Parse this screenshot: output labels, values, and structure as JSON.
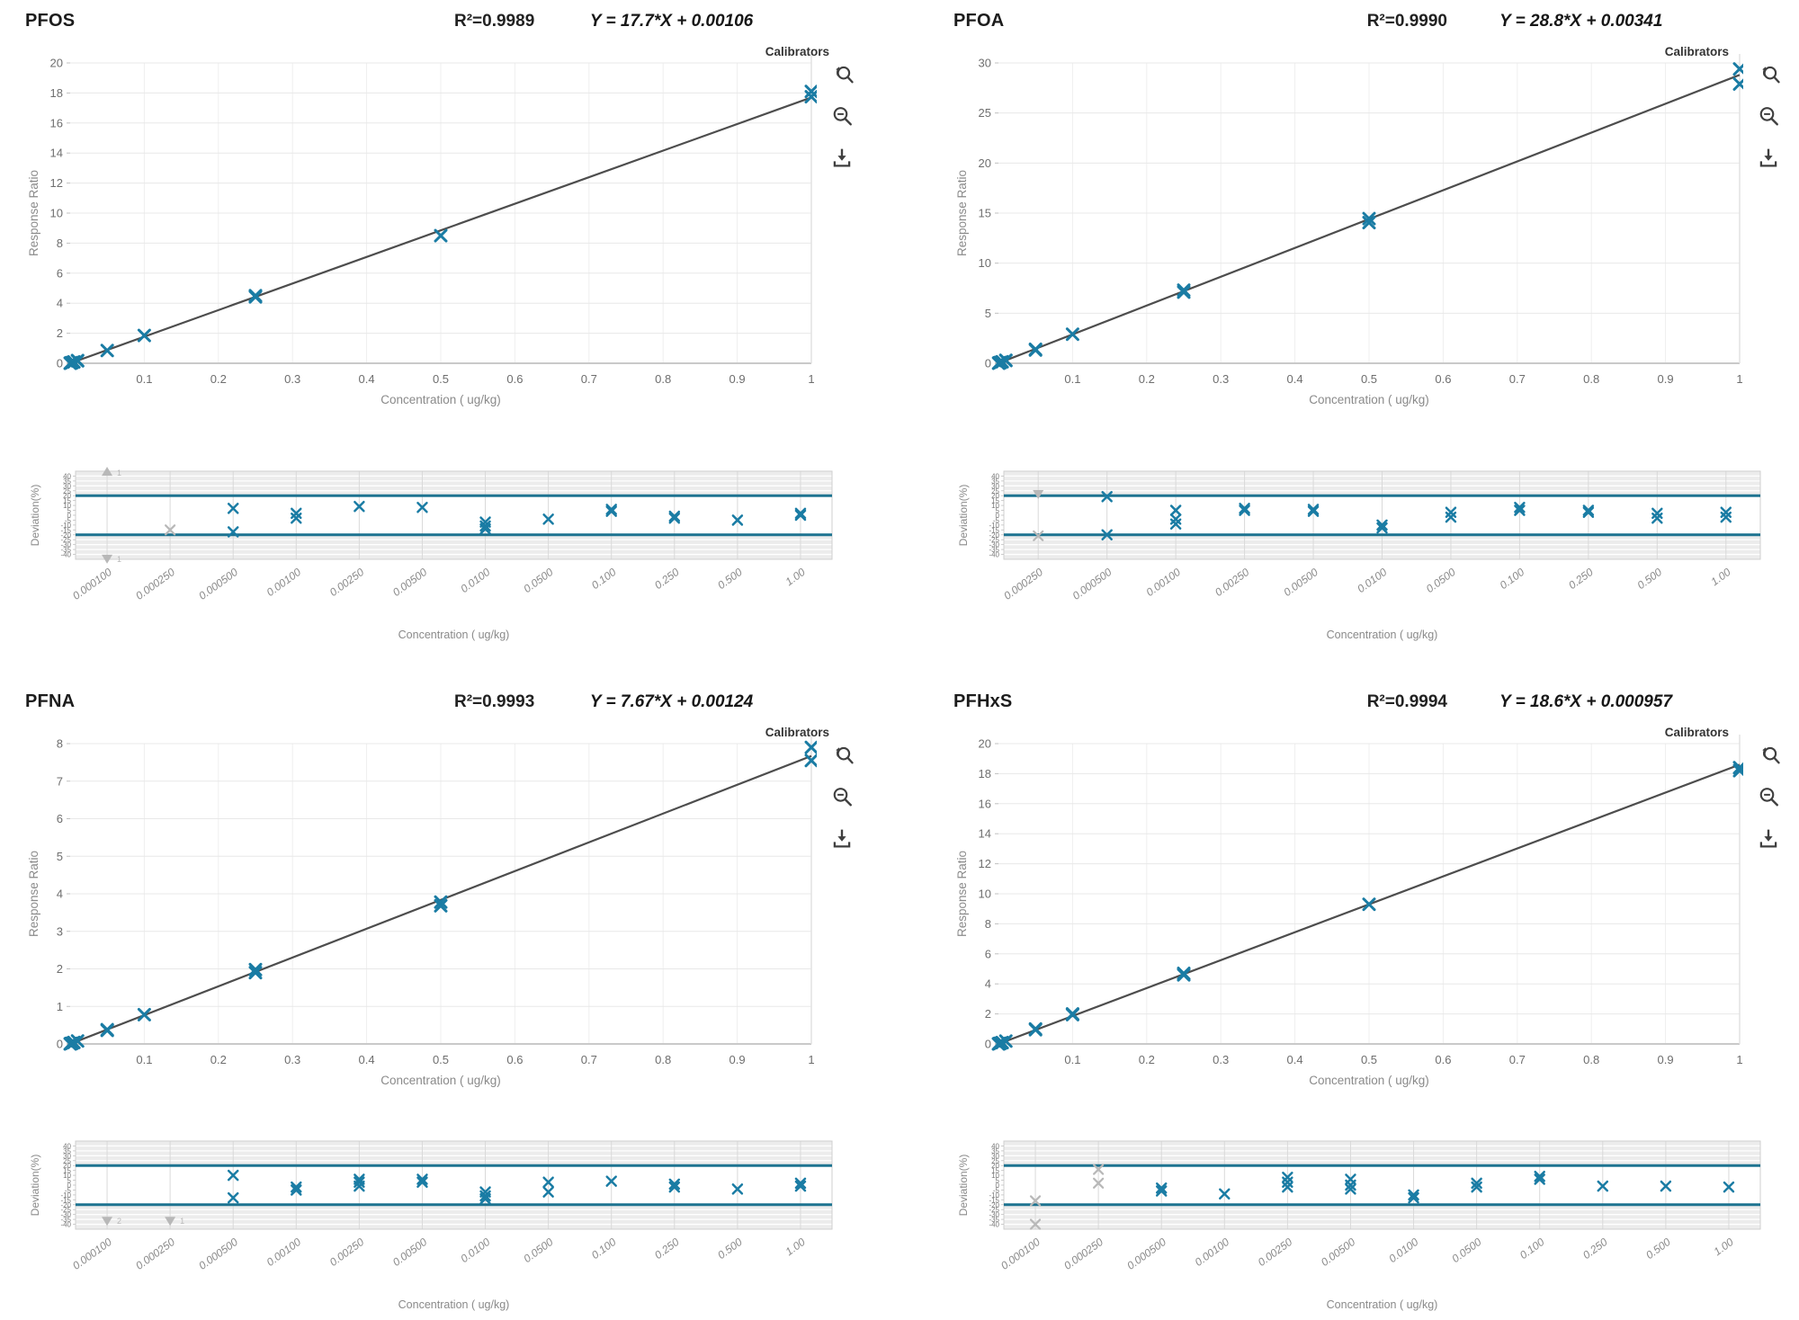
{
  "colors": {
    "marker": "#1a7ca4",
    "limit_line": "#1d7390",
    "fit_line": "#4d4d4d",
    "excluded": "#b8b8b8",
    "grid": "#e8e8e8",
    "grid_vertical": "#efefef",
    "zero_line": "#c9c9c9",
    "stripe": "#ececec",
    "axis_text": "#8a8a8a",
    "tick_text": "#6e6e6e",
    "frame": "#cfcfcf",
    "icon": "#3f3f3f"
  },
  "icon_labels": {
    "zoom_reset": "zoom-reset",
    "zoom_out": "zoom-out",
    "download": "download"
  },
  "chart_data": [
    {
      "id": "PFOS",
      "title": "PFOS",
      "r2": "R²=0.9989",
      "equation": "Y = 17.7*X + 0.00106",
      "legend": "Calibrators",
      "main": {
        "type": "scatter",
        "xlabel": "Concentration ( ug/kg)",
        "ylabel": "Response Ratio",
        "xlim": [
          0,
          1
        ],
        "ylim": [
          0,
          20
        ],
        "xticks": [
          "0.1",
          "0.2",
          "0.3",
          "0.4",
          "0.5",
          "0.6",
          "0.7",
          "0.8",
          "0.9",
          "1"
        ],
        "yticks": [
          0,
          2,
          4,
          6,
          8,
          10,
          12,
          14,
          16,
          18,
          20
        ],
        "fit": {
          "slope": 17.7,
          "intercept": 0.00106
        },
        "points": [
          [
            0.0001,
            0.002
          ],
          [
            0.00025,
            0.005
          ],
          [
            0.0005,
            0.01
          ],
          [
            0.001,
            0.02
          ],
          [
            0.0025,
            0.05
          ],
          [
            0.005,
            0.09
          ],
          [
            0.01,
            0.18
          ],
          [
            0.01,
            0.16
          ],
          [
            0.05,
            0.85
          ],
          [
            0.1,
            1.85
          ],
          [
            0.25,
            4.5
          ],
          [
            0.25,
            4.42
          ],
          [
            0.5,
            8.5
          ],
          [
            1,
            18.1
          ],
          [
            1,
            17.75
          ]
        ]
      },
      "deviation": {
        "type": "scatter",
        "xlabel": "Concentration ( ug/kg)",
        "ylabel": "Deviation(%)",
        "ylim": [
          -45,
          45
        ],
        "yticks": [
          40,
          35,
          30,
          25,
          20,
          15,
          10,
          5,
          0,
          -5,
          -10,
          -15,
          -20,
          -25,
          -30,
          -35,
          -40
        ],
        "limits": [
          20,
          -20
        ],
        "categories": [
          "0.000100",
          "0.000250",
          "0.000500",
          "0.00100",
          "0.00250",
          "0.00500",
          "0.0100",
          "0.0500",
          "0.100",
          "0.250",
          "0.500",
          "1.00"
        ],
        "points": [
          {
            "x": "0.000500",
            "y": [
              7,
              -17
            ]
          },
          {
            "x": "0.00100",
            "y": [
              2,
              -3
            ]
          },
          {
            "x": "0.00250",
            "y": [
              9
            ]
          },
          {
            "x": "0.00500",
            "y": [
              8
            ]
          },
          {
            "x": "0.0100",
            "y": [
              -7,
              -11,
              -14
            ]
          },
          {
            "x": "0.0500",
            "y": [
              -4
            ]
          },
          {
            "x": "0.100",
            "y": [
              6,
              4
            ]
          },
          {
            "x": "0.250",
            "y": [
              -1,
              -3
            ]
          },
          {
            "x": "0.500",
            "y": [
              -5
            ]
          },
          {
            "x": "1.00",
            "y": [
              2,
              0
            ]
          }
        ],
        "excluded": [
          {
            "x": "0.000100",
            "y": 44,
            "marker": "triangle-up",
            "count": "1"
          },
          {
            "x": "0.000100",
            "y": -44,
            "marker": "triangle-down",
            "count": "1"
          },
          {
            "x": "0.000250",
            "y": -15,
            "marker": "x",
            "count": ""
          }
        ]
      }
    },
    {
      "id": "PFOA",
      "title": "PFOA",
      "r2": "R²=0.9990",
      "equation": "Y = 28.8*X + 0.00341",
      "legend": "Calibrators",
      "main": {
        "type": "scatter",
        "xlabel": "Concentration ( ug/kg)",
        "ylabel": "Response Ratio",
        "xlim": [
          0,
          1
        ],
        "ylim": [
          0,
          30
        ],
        "xticks": [
          "0.1",
          "0.2",
          "0.3",
          "0.4",
          "0.5",
          "0.6",
          "0.7",
          "0.8",
          "0.9",
          "1"
        ],
        "yticks": [
          0,
          5,
          10,
          15,
          20,
          25,
          30
        ],
        "fit": {
          "slope": 28.8,
          "intercept": 0.00341
        },
        "points": [
          [
            0.00025,
            0.01
          ],
          [
            0.0005,
            0.018
          ],
          [
            0.001,
            0.035
          ],
          [
            0.0025,
            0.08
          ],
          [
            0.005,
            0.15
          ],
          [
            0.01,
            0.3
          ],
          [
            0.01,
            0.27
          ],
          [
            0.05,
            1.4
          ],
          [
            0.05,
            1.32
          ],
          [
            0.1,
            2.9
          ],
          [
            0.25,
            7.3
          ],
          [
            0.25,
            7.1
          ],
          [
            0.5,
            14.45
          ],
          [
            0.5,
            14.05
          ],
          [
            1,
            29.4
          ],
          [
            1,
            27.9
          ]
        ]
      },
      "deviation": {
        "type": "scatter",
        "xlabel": "Concentration ( ug/kg)",
        "ylabel": "Deviation(%)",
        "ylim": [
          -45,
          45
        ],
        "yticks": [
          40,
          35,
          30,
          25,
          20,
          15,
          10,
          5,
          0,
          -5,
          -10,
          -15,
          -20,
          -25,
          -30,
          -35,
          -40
        ],
        "limits": [
          20,
          -20
        ],
        "categories": [
          "0.000250",
          "0.000500",
          "0.00100",
          "0.00250",
          "0.00500",
          "0.0100",
          "0.0500",
          "0.100",
          "0.250",
          "0.500",
          "1.00"
        ],
        "points": [
          {
            "x": "0.000500",
            "y": [
              19,
              -20
            ]
          },
          {
            "x": "0.00100",
            "y": [
              5,
              -4,
              -9
            ]
          },
          {
            "x": "0.00250",
            "y": [
              7,
              5
            ]
          },
          {
            "x": "0.00500",
            "y": [
              6,
              4
            ]
          },
          {
            "x": "0.0100",
            "y": [
              -10,
              -13
            ]
          },
          {
            "x": "0.0500",
            "y": [
              3,
              -2
            ]
          },
          {
            "x": "0.100",
            "y": [
              8,
              5
            ]
          },
          {
            "x": "0.250",
            "y": [
              5,
              3
            ]
          },
          {
            "x": "0.500",
            "y": [
              2,
              -3
            ]
          },
          {
            "x": "1.00",
            "y": [
              3,
              -2
            ]
          }
        ],
        "excluded": [
          {
            "x": "0.000250",
            "y": 22,
            "marker": "triangle-down",
            "count": ""
          },
          {
            "x": "0.000250",
            "y": -21,
            "marker": "x",
            "count": ""
          }
        ]
      }
    },
    {
      "id": "PFNA",
      "title": "PFNA",
      "r2": "R²=0.9993",
      "equation": "Y = 7.67*X + 0.00124",
      "legend": "Calibrators",
      "main": {
        "type": "scatter",
        "xlabel": "Concentration ( ug/kg)",
        "ylabel": "Response Ratio",
        "xlim": [
          0,
          1
        ],
        "ylim": [
          0,
          8
        ],
        "xticks": [
          "0.1",
          "0.2",
          "0.3",
          "0.4",
          "0.5",
          "0.6",
          "0.7",
          "0.8",
          "0.9",
          "1"
        ],
        "yticks": [
          0,
          1,
          2,
          3,
          4,
          5,
          6,
          7,
          8
        ],
        "fit": {
          "slope": 7.67,
          "intercept": 0.00124
        },
        "points": [
          [
            0.0001,
            0.001
          ],
          [
            0.00025,
            0.003
          ],
          [
            0.0005,
            0.005
          ],
          [
            0.001,
            0.009
          ],
          [
            0.0025,
            0.02
          ],
          [
            0.005,
            0.04
          ],
          [
            0.01,
            0.08
          ],
          [
            0.05,
            0.38
          ],
          [
            0.05,
            0.36
          ],
          [
            0.1,
            0.78
          ],
          [
            0.25,
            1.98
          ],
          [
            0.25,
            1.9
          ],
          [
            0.5,
            3.78
          ],
          [
            0.5,
            3.68
          ],
          [
            1,
            7.9
          ],
          [
            1,
            7.55
          ]
        ]
      },
      "deviation": {
        "type": "scatter",
        "xlabel": "Concentration ( ug/kg)",
        "ylabel": "Deviation(%)",
        "ylim": [
          -45,
          45
        ],
        "yticks": [
          40,
          35,
          30,
          25,
          20,
          15,
          10,
          5,
          0,
          -5,
          -10,
          -15,
          -20,
          -25,
          -30,
          -35,
          -40
        ],
        "limits": [
          20,
          -20
        ],
        "categories": [
          "0.000100",
          "0.000250",
          "0.000500",
          "0.00100",
          "0.00250",
          "0.00500",
          "0.0100",
          "0.0500",
          "0.100",
          "0.250",
          "0.500",
          "1.00"
        ],
        "points": [
          {
            "x": "0.000500",
            "y": [
              10,
              -13
            ]
          },
          {
            "x": "0.00100",
            "y": [
              -2,
              -5
            ]
          },
          {
            "x": "0.00250",
            "y": [
              6,
              3,
              -1
            ]
          },
          {
            "x": "0.00500",
            "y": [
              6,
              3
            ]
          },
          {
            "x": "0.0100",
            "y": [
              -7,
              -11,
              -14
            ]
          },
          {
            "x": "0.0500",
            "y": [
              3,
              -7
            ]
          },
          {
            "x": "0.100",
            "y": [
              4
            ]
          },
          {
            "x": "0.250",
            "y": [
              1,
              -2
            ]
          },
          {
            "x": "0.500",
            "y": [
              -4
            ]
          },
          {
            "x": "1.00",
            "y": [
              2,
              -1
            ]
          }
        ],
        "excluded": [
          {
            "x": "0.000100",
            "y": -36,
            "marker": "triangle-down",
            "count": "2"
          },
          {
            "x": "0.000250",
            "y": -36,
            "marker": "triangle-down",
            "count": "1"
          }
        ]
      }
    },
    {
      "id": "PFHxS",
      "title": "PFHxS",
      "r2": "R²=0.9994",
      "equation": "Y = 18.6*X + 0.000957",
      "legend": "Calibrators",
      "main": {
        "type": "scatter",
        "xlabel": "Concentration ( ug/kg)",
        "ylabel": "Response Ratio",
        "xlim": [
          0,
          1
        ],
        "ylim": [
          0,
          20
        ],
        "xticks": [
          "0.1",
          "0.2",
          "0.3",
          "0.4",
          "0.5",
          "0.6",
          "0.7",
          "0.8",
          "0.9",
          "1"
        ],
        "yticks": [
          0,
          2,
          4,
          6,
          8,
          10,
          12,
          14,
          16,
          18,
          20
        ],
        "fit": {
          "slope": 18.6,
          "intercept": 0.000957
        },
        "points": [
          [
            0.0001,
            0.002
          ],
          [
            0.00025,
            0.005
          ],
          [
            0.0005,
            0.01
          ],
          [
            0.001,
            0.02
          ],
          [
            0.0025,
            0.05
          ],
          [
            0.005,
            0.09
          ],
          [
            0.01,
            0.19
          ],
          [
            0.05,
            1.0
          ],
          [
            0.05,
            0.95
          ],
          [
            0.1,
            2.0
          ],
          [
            0.1,
            1.95
          ],
          [
            0.25,
            4.7
          ],
          [
            0.25,
            4.6
          ],
          [
            0.5,
            9.3
          ],
          [
            1,
            18.4
          ],
          [
            1,
            18.2
          ]
        ]
      },
      "deviation": {
        "type": "scatter",
        "xlabel": "Concentration ( ug/kg)",
        "ylabel": "Deviation(%)",
        "ylim": [
          -45,
          45
        ],
        "yticks": [
          40,
          35,
          30,
          25,
          20,
          15,
          10,
          5,
          0,
          -5,
          -10,
          -15,
          -20,
          -25,
          -30,
          -35,
          -40
        ],
        "limits": [
          20,
          -20
        ],
        "categories": [
          "0.000100",
          "0.000250",
          "0.000500",
          "0.00100",
          "0.00250",
          "0.00500",
          "0.0100",
          "0.0500",
          "0.100",
          "0.250",
          "0.500",
          "1.00"
        ],
        "points": [
          {
            "x": "0.000500",
            "y": [
              -3,
              -6
            ]
          },
          {
            "x": "0.00100",
            "y": [
              -9
            ]
          },
          {
            "x": "0.00250",
            "y": [
              8,
              3,
              -2
            ]
          },
          {
            "x": "0.00500",
            "y": [
              6,
              0,
              -4
            ]
          },
          {
            "x": "0.0100",
            "y": [
              -10,
              -13
            ]
          },
          {
            "x": "0.0500",
            "y": [
              2,
              -2
            ]
          },
          {
            "x": "0.100",
            "y": [
              9,
              6
            ]
          },
          {
            "x": "0.250",
            "y": [
              -1
            ]
          },
          {
            "x": "0.500",
            "y": [
              -1
            ]
          },
          {
            "x": "1.00",
            "y": [
              -2
            ]
          }
        ],
        "excluded": [
          {
            "x": "0.000100",
            "y": -16,
            "marker": "x",
            "count": ""
          },
          {
            "x": "0.000100",
            "y": -40,
            "marker": "x",
            "count": ""
          },
          {
            "x": "0.000250",
            "y": 16,
            "marker": "x",
            "count": ""
          },
          {
            "x": "0.000250",
            "y": 2,
            "marker": "x",
            "count": ""
          }
        ]
      }
    }
  ]
}
